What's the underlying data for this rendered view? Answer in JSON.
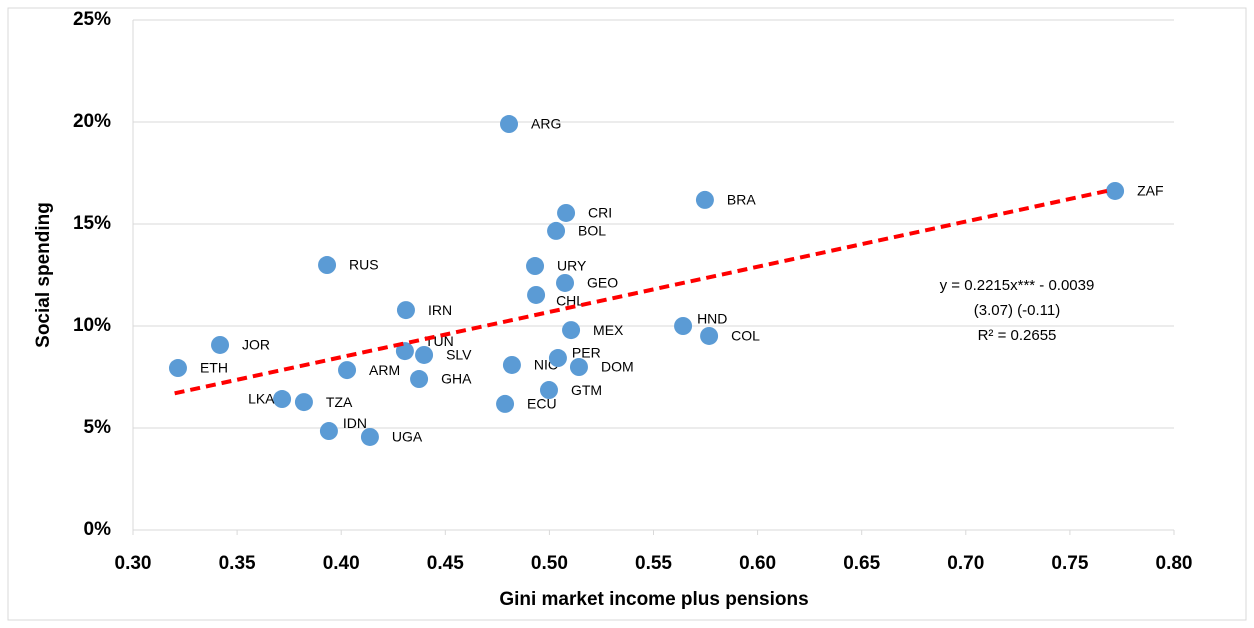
{
  "chart_data": {
    "type": "scatter",
    "x_label": "Gini market income plus pensions",
    "y_label": "Social spending",
    "labels": [
      "ETH",
      "JOR",
      "LKA",
      "TZA",
      "RUS",
      "IDN",
      "ARM",
      "UGA",
      "TUN",
      "IRN",
      "SLV",
      "GHA",
      "ECU",
      "ARG",
      "NIC",
      "URY",
      "CHL",
      "PER",
      "BOL",
      "CRI",
      "GEO",
      "MEX",
      "GTM",
      "DOM",
      "HND",
      "COL",
      "BRA",
      "ZAF"
    ],
    "x": [
      0.3216,
      0.3418,
      0.3716,
      0.3821,
      0.3932,
      0.3941,
      0.4028,
      0.4138,
      0.4306,
      0.4311,
      0.4398,
      0.4374,
      0.4787,
      0.4806,
      0.482,
      0.4931,
      0.4936,
      0.5041,
      0.5032,
      0.508,
      0.5075,
      0.5104,
      0.4998,
      0.5142,
      0.5642,
      0.5767,
      0.5747,
      0.7717
    ],
    "values": [
      7.94,
      9.07,
      6.42,
      6.27,
      12.99,
      4.85,
      7.84,
      4.56,
      8.77,
      10.78,
      8.58,
      7.4,
      6.18,
      19.9,
      8.09,
      12.94,
      11.52,
      8.43,
      14.66,
      15.54,
      12.11,
      9.8,
      6.86,
      7.99,
      10.0,
      9.51,
      16.18,
      16.62
    ],
    "color": "#5b9bd5",
    "trendline": {
      "x": [
        0.32,
        0.77
      ],
      "y": [
        6.7,
        16.67
      ],
      "color": "#ff0000"
    },
    "annotations": [
      "y = 0.2215x*** - 0.0039",
      "(3.07)      (-0.11)",
      "R² = 0.2655"
    ],
    "xlim": [
      0.3,
      0.8
    ],
    "ylim": [
      0,
      25
    ],
    "xticks": [
      {
        "value": 0.3,
        "label": "0.30"
      },
      {
        "value": 0.35,
        "label": "0.35"
      },
      {
        "value": 0.4,
        "label": "0.40"
      },
      {
        "value": 0.45,
        "label": "0.45"
      },
      {
        "value": 0.5,
        "label": "0.50"
      },
      {
        "value": 0.55,
        "label": "0.55"
      },
      {
        "value": 0.6,
        "label": "0.60"
      },
      {
        "value": 0.65,
        "label": "0.65"
      },
      {
        "value": 0.7,
        "label": "0.70"
      },
      {
        "value": 0.75,
        "label": "0.75"
      },
      {
        "value": 0.8,
        "label": "0.80"
      }
    ],
    "yticks": [
      {
        "value": 0,
        "label": "0%"
      },
      {
        "value": 5,
        "label": "5%"
      },
      {
        "value": 10,
        "label": "10%"
      },
      {
        "value": 15,
        "label": "15%"
      },
      {
        "value": 20,
        "label": "20%"
      },
      {
        "value": 25,
        "label": "25%"
      }
    ],
    "grid": true
  }
}
